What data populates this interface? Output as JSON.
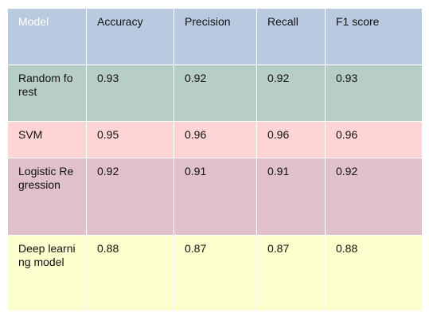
{
  "table": {
    "header_color": "#b9c9df",
    "columns": [
      "Model",
      "Accuracy",
      "Precision",
      "Recall",
      "F1 score"
    ],
    "rows": [
      {
        "model": "Random forest",
        "accuracy": "0.93",
        "precision": "0.92",
        "recall": "0.92",
        "f1": "0.93",
        "color": "#b7cdc7"
      },
      {
        "model": "SVM",
        "accuracy": "0.95",
        "precision": "0.96",
        "recall": "0.96",
        "f1": "0.96",
        "color": "#fed4d4"
      },
      {
        "model": "Logistic Regression",
        "accuracy": "0.92",
        "precision": "0.91",
        "recall": "0.91",
        "f1": "0.92",
        "color": "#e0c0ca"
      },
      {
        "model": "Deep learning model",
        "accuracy": "0.88",
        "precision": "0.87",
        "recall": "0.87",
        "f1": "0.88",
        "color": "#fdfece"
      }
    ]
  }
}
